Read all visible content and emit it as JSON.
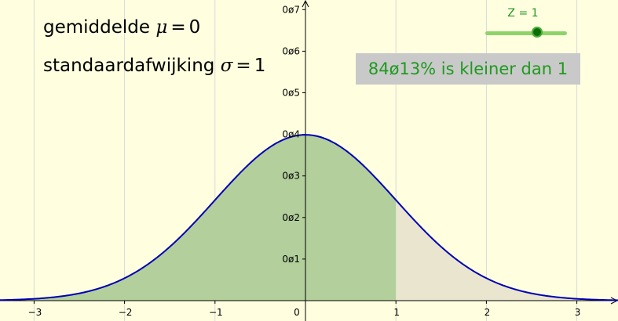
{
  "graph": {
    "mean_label": "gemiddelde",
    "mean_symbol": "μ",
    "mean_value": "0",
    "sd_label": "standaardafwijking",
    "sd_symbol": "σ",
    "sd_value": "1",
    "result_text": "84ø13% is kleiner dan 1",
    "slider_label": "Z = 1",
    "z_value": 1
  },
  "colors": {
    "background": "#ffffe0",
    "curve": "#0000b4",
    "shaded_left": "#b2cf9c",
    "shaded_right": "#e9e5cf",
    "gridline": "#d8d8d8",
    "result_text": "#1f9a1f",
    "slider_track": "#8ed36a",
    "slider_knob": "#0a6e0a"
  },
  "chart_data": {
    "type": "area",
    "title": "",
    "xlabel": "",
    "ylabel": "",
    "distribution": "normal",
    "mean": 0,
    "sd": 1,
    "shaded_upper_bound": 1,
    "xlim": [
      -3.4,
      3.4
    ],
    "ylim": [
      0,
      0.73
    ],
    "x_ticks": [
      -3,
      -2,
      -1,
      0,
      1,
      2,
      3
    ],
    "x_tick_labels": [
      "−3",
      "−2",
      "−1",
      "0",
      "1",
      "2",
      "3"
    ],
    "y_ticks": [
      0.1,
      0.2,
      0.3,
      0.4,
      0.5,
      0.6,
      0.7
    ],
    "y_tick_labels": [
      "0ø1",
      "0ø2",
      "0ø3",
      "0ø4",
      "0ø5",
      "0ø6",
      "0ø7"
    ],
    "grid": "vertical"
  }
}
